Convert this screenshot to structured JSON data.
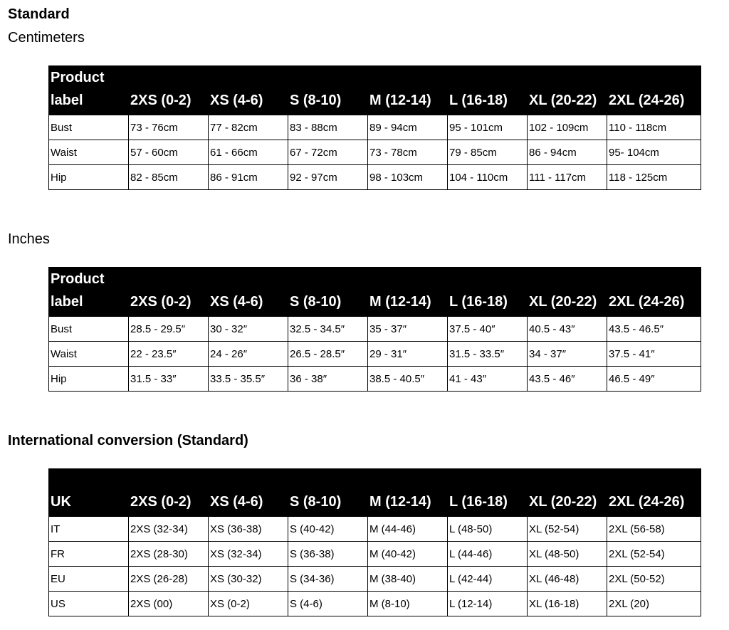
{
  "standard_title": "Standard",
  "cm_title": "Centimeters",
  "inches_title": "Inches",
  "intl_title": "International conversion (Standard)",
  "size_headers": [
    "2XS (0-2)",
    "XS (4-6)",
    "S (8-10)",
    "M (12-14)",
    "L (16-18)",
    "XL (20-22)",
    "2XL (24-26)"
  ],
  "cm_table": {
    "corner": "Product label",
    "rows": [
      {
        "label": "Bust",
        "values": [
          "73 - 76cm",
          "77 - 82cm",
          "83 - 88cm",
          "89 - 94cm",
          "95 - 101cm",
          "102 - 109cm",
          "110 - 118cm"
        ]
      },
      {
        "label": "Waist",
        "values": [
          "57 - 60cm",
          "61 - 66cm",
          "67 - 72cm",
          "73 - 78cm",
          "79 - 85cm",
          "86 - 94cm",
          "95- 104cm"
        ]
      },
      {
        "label": "Hip",
        "values": [
          "82 - 85cm",
          "86 - 91cm",
          "92 - 97cm",
          "98 - 103cm",
          "104 - 110cm",
          "111 - 117cm",
          "118 - 125cm"
        ]
      }
    ]
  },
  "in_table": {
    "corner": "Product label",
    "rows": [
      {
        "label": "Bust",
        "values": [
          "28.5 - 29.5″",
          "30 - 32″",
          "32.5 - 34.5″",
          "35 - 37″",
          "37.5 - 40″",
          "40.5 - 43″",
          "43.5 - 46.5″"
        ]
      },
      {
        "label": "Waist",
        "values": [
          "22 - 23.5″",
          "24 - 26″",
          "26.5 - 28.5″",
          "29 - 31″",
          "31.5 - 33.5″",
          "34 - 37″",
          "37.5 - 41″"
        ]
      },
      {
        "label": "Hip",
        "values": [
          "31.5 - 33″",
          "33.5 - 35.5″",
          "36 - 38″",
          "38.5 - 40.5″",
          "41 - 43″",
          "43.5 - 46″",
          "46.5 - 49″"
        ]
      }
    ]
  },
  "intl_table": {
    "corner": "UK",
    "rows": [
      {
        "label": "IT",
        "values": [
          "2XS (32-34)",
          "XS (36-38)",
          "S (40-42)",
          "M (44-46)",
          "L (48-50)",
          "XL (52-54)",
          "2XL (56-58)"
        ]
      },
      {
        "label": "FR",
        "values": [
          "2XS (28-30)",
          "XS (32-34)",
          "S (36-38)",
          "M (40-42)",
          "L (44-46)",
          "XL (48-50)",
          "2XL (52-54)"
        ]
      },
      {
        "label": "EU",
        "values": [
          "2XS (26-28)",
          "XS (30-32)",
          "S (34-36)",
          "M (38-40)",
          "L (42-44)",
          "XL (46-48)",
          "2XL (50-52)"
        ]
      },
      {
        "label": "US",
        "values": [
          "2XS (00)",
          "XS (0-2)",
          "S (4-6)",
          "M (8-10)",
          "L (12-14)",
          "XL (16-18)",
          "2XL (20)"
        ]
      }
    ]
  }
}
